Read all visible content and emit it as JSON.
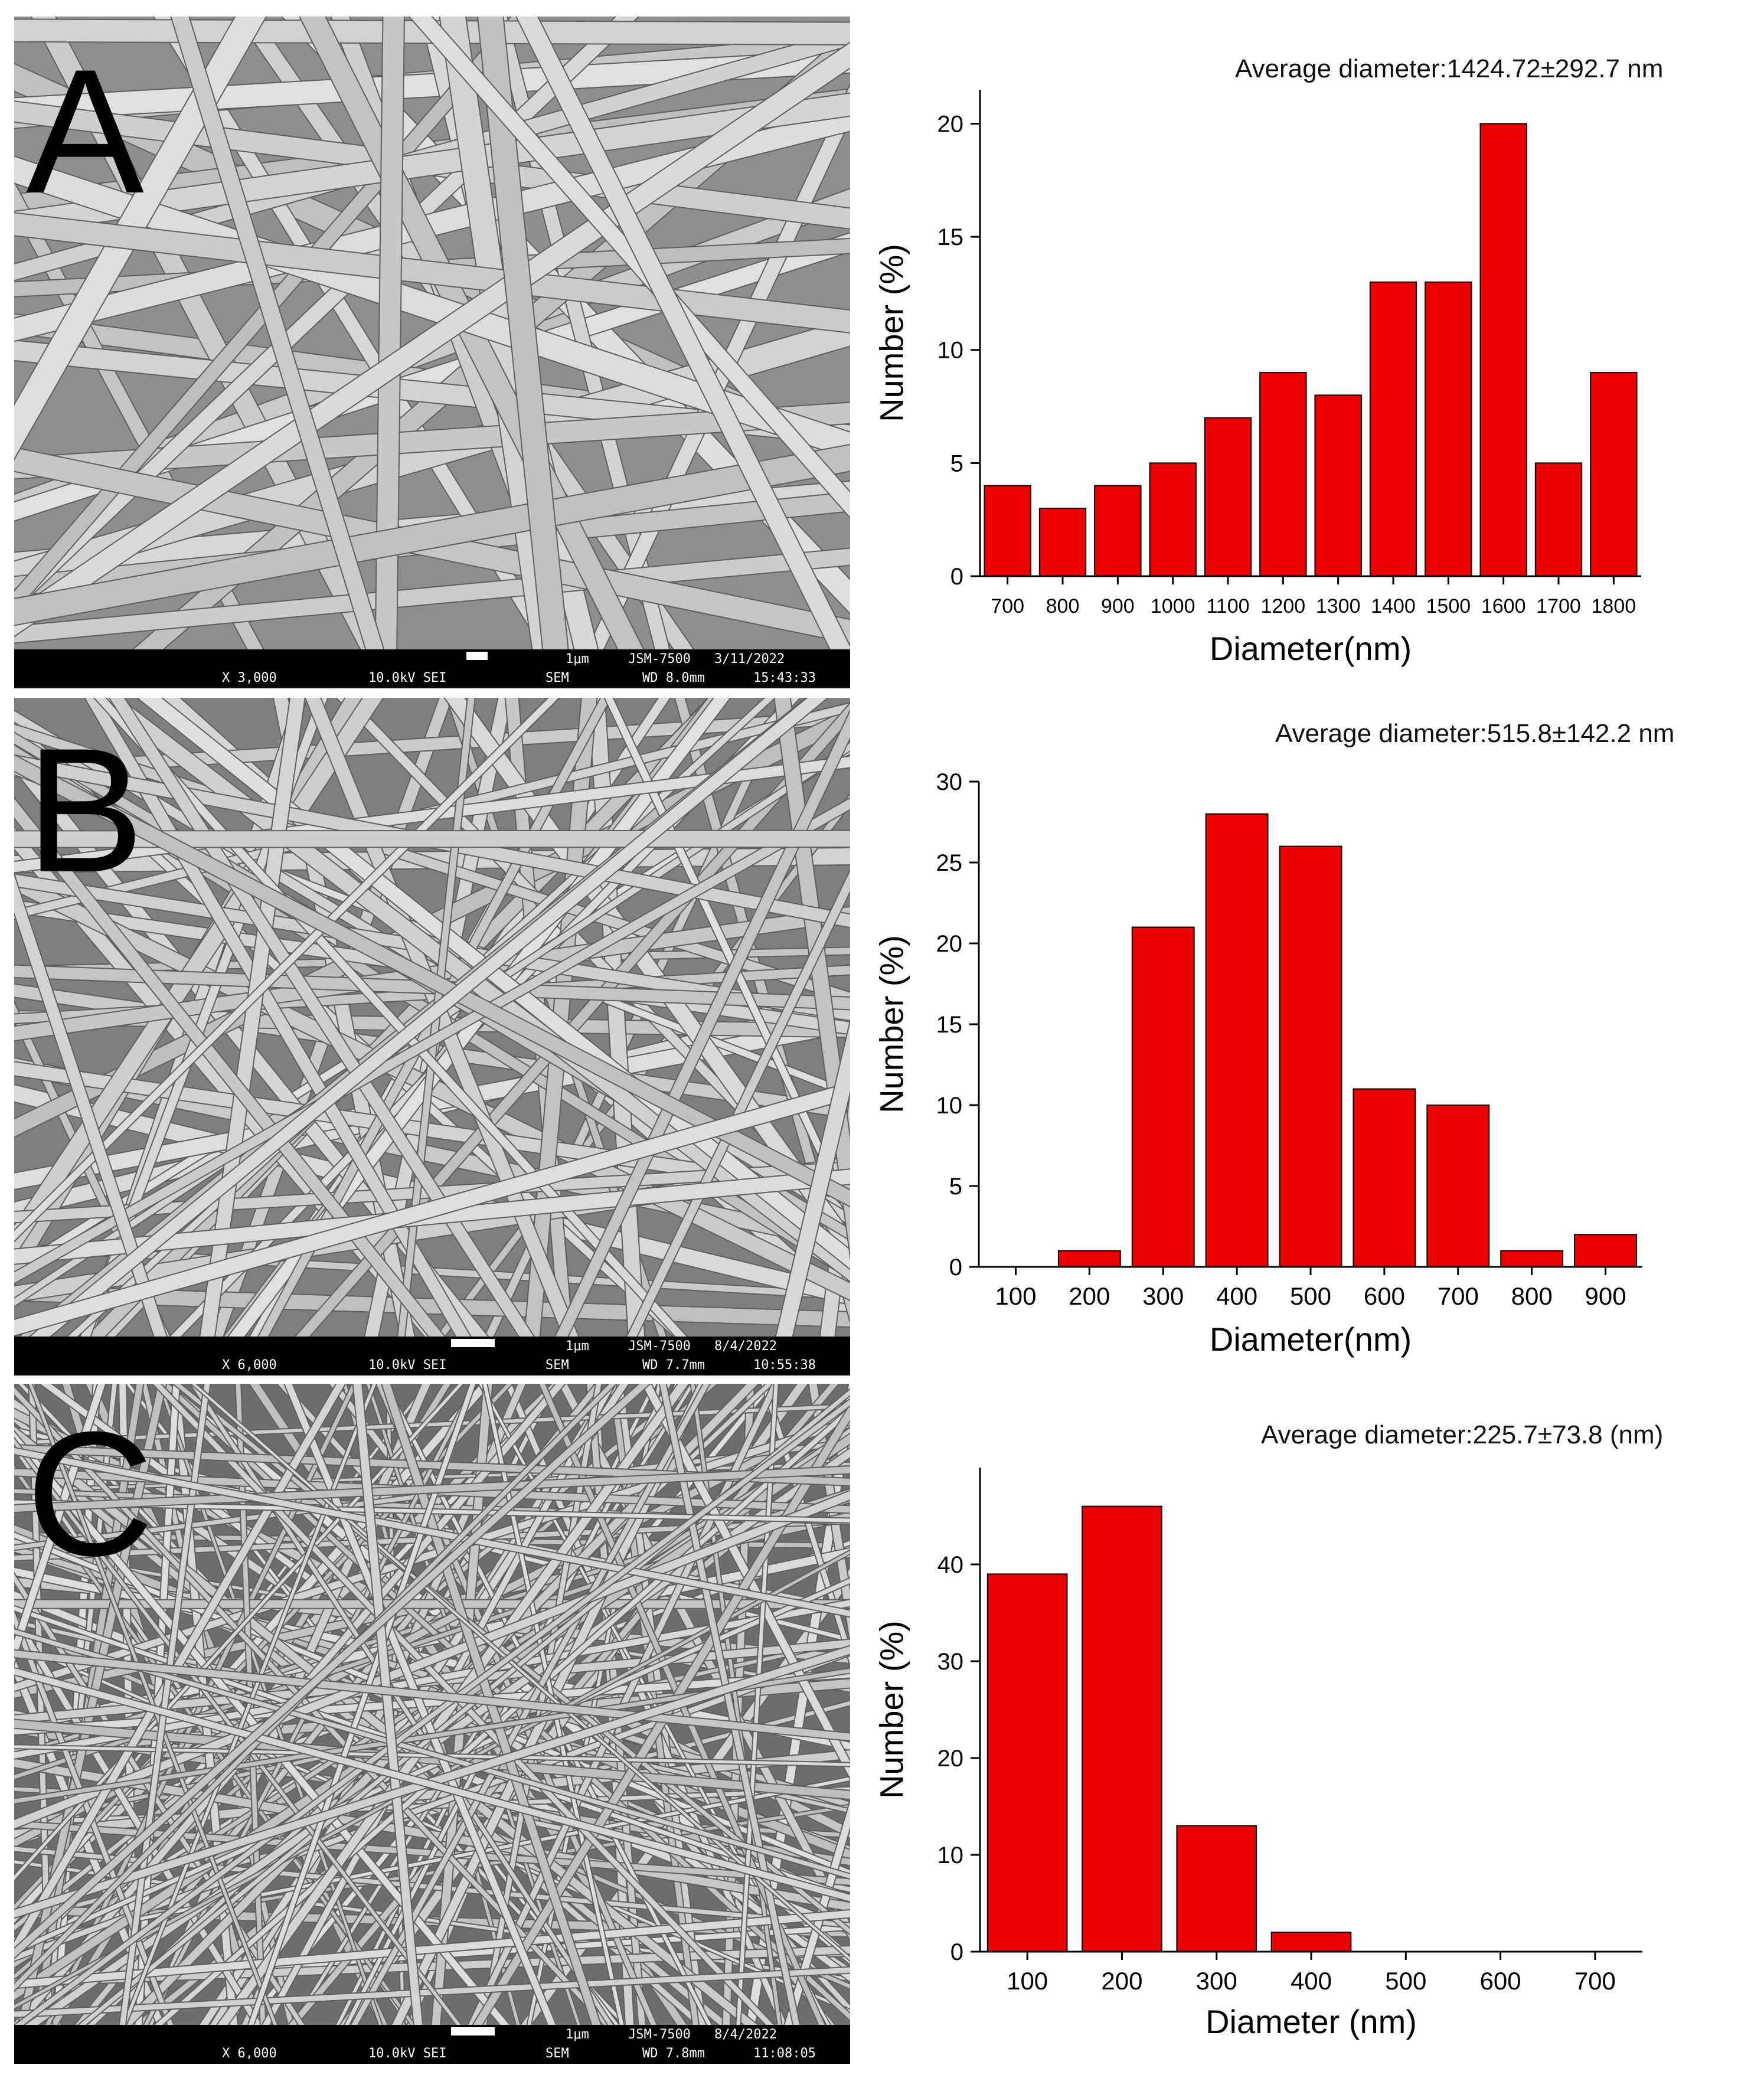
{
  "panels": [
    {
      "letter": "A",
      "sem_info": {
        "mag": "X 3,000",
        "kv": "10.0kV SEI",
        "mode": "SEM",
        "wd": "WD 8.0mm",
        "scale": "1μm",
        "inst": "JSM-7500",
        "date": "3/11/2022",
        "time": "15:43:33"
      },
      "average_text": "Average diameter:1424.72±292.7 nm",
      "chart_data": {
        "type": "bar",
        "categories": [
          "700",
          "800",
          "900",
          "1000",
          "1100",
          "1200",
          "1300",
          "1400",
          "1500",
          "1600",
          "1700",
          "1800"
        ],
        "values": [
          4,
          3,
          4,
          5,
          7,
          9,
          8,
          13,
          13,
          20,
          5,
          9
        ],
        "xlabel": "Diameter(nm)",
        "ylabel": "Number (%)",
        "ylim": [
          0,
          21.5
        ],
        "yticks": [
          0,
          5,
          10,
          15,
          20
        ],
        "bar_color": "#ee0000"
      }
    },
    {
      "letter": "B",
      "sem_info": {
        "mag": "X 6,000",
        "kv": "10.0kV SEI",
        "mode": "SEM",
        "wd": "WD 7.7mm",
        "scale": "1μm",
        "inst": "JSM-7500",
        "date": "8/4/2022",
        "time": "10:55:38"
      },
      "average_text": "Average diameter:515.8±142.2 nm",
      "chart_data": {
        "type": "bar",
        "categories": [
          "100",
          "200",
          "300",
          "400",
          "500",
          "600",
          "700",
          "800",
          "900"
        ],
        "values": [
          0,
          1,
          21,
          28,
          26,
          11,
          10,
          1,
          2
        ],
        "xlabel": "Diameter(nm)",
        "ylabel": "Number (%)",
        "ylim": [
          0,
          30
        ],
        "yticks": [
          0,
          5,
          10,
          15,
          20,
          25,
          30
        ],
        "bar_color": "#ee0000"
      }
    },
    {
      "letter": "C",
      "sem_info": {
        "mag": "X 6,000",
        "kv": "10.0kV SEI",
        "mode": "SEM",
        "wd": "WD 7.8mm",
        "scale": "1μm",
        "inst": "JSM-7500",
        "date": "8/4/2022",
        "time": "11:08:05"
      },
      "average_text": "Average diameter:225.7±73.8 (nm)",
      "chart_data": {
        "type": "bar",
        "categories": [
          "100",
          "200",
          "300",
          "400",
          "500",
          "600",
          "700"
        ],
        "values": [
          39,
          46,
          13,
          2,
          0,
          0,
          0
        ],
        "xlabel": "Diameter (nm)",
        "ylabel": "Number (%)",
        "ylim": [
          0,
          50
        ],
        "yticks": [
          0,
          10,
          20,
          30,
          40
        ],
        "bar_color": "#ee0000"
      }
    }
  ]
}
